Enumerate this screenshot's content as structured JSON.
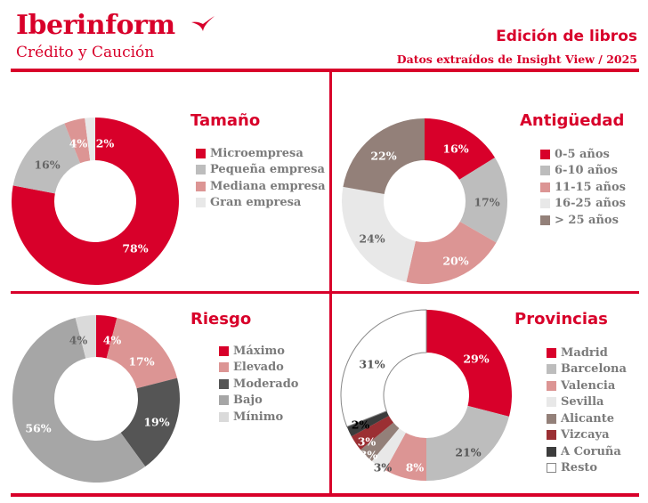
{
  "header": {
    "brand": "Iberinform",
    "brand_subtitle": "Crédito y Caución",
    "title": "Edición de libros",
    "subtitle": "Datos extraídos de Insight View / 2025",
    "brand_color": "#d8002a",
    "logo_icon": "plane-swoosh-icon"
  },
  "chart_data": [
    {
      "type": "pie",
      "donut": true,
      "title": "Tamaño",
      "categories": [
        "Microempresa",
        "Pequeña empresa",
        "Mediana empresa",
        "Gran empresa"
      ],
      "values": [
        78,
        16,
        4,
        2
      ],
      "labels": [
        "78%",
        "16%",
        "4%",
        "2%"
      ],
      "colors": [
        "#d8002a",
        "#bdbdbd",
        "#dc9594",
        "#e8e8e8"
      ],
      "label_colors": [
        "#ffffff",
        "#666666",
        "#ffffff",
        "#ffffff"
      ],
      "slice_order": [
        0,
        1,
        2,
        3
      ],
      "legend_position": "right"
    },
    {
      "type": "pie",
      "donut": true,
      "title": "Antigüedad",
      "categories": [
        "0-5 años",
        "6-10 años",
        "11-15 años",
        "16-25 años",
        "> 25 años"
      ],
      "values": [
        16,
        17,
        20,
        24,
        22
      ],
      "labels": [
        "16%",
        "17%",
        "20%",
        "24%",
        "22%"
      ],
      "colors": [
        "#d8002a",
        "#bdbdbd",
        "#dc9594",
        "#e8e8e8",
        "#938079"
      ],
      "label_colors": [
        "#ffffff",
        "#666666",
        "#ffffff",
        "#666666",
        "#ffffff"
      ],
      "legend_position": "right"
    },
    {
      "type": "pie",
      "donut": true,
      "title": "Riesgo",
      "categories": [
        "Máximo",
        "Elevado",
        "Moderado",
        "Bajo",
        "Mínimo"
      ],
      "values": [
        4,
        17,
        19,
        56,
        4
      ],
      "labels": [
        "4%",
        "17%",
        "19%",
        "56%",
        "4%"
      ],
      "colors": [
        "#d8002a",
        "#dc9594",
        "#555555",
        "#a6a6a6",
        "#dadada"
      ],
      "label_colors": [
        "#ffffff",
        "#ffffff",
        "#ffffff",
        "#ffffff",
        "#666666"
      ],
      "legend_position": "right"
    },
    {
      "type": "pie",
      "donut": true,
      "title": "Provincias",
      "categories": [
        "Madrid",
        "Barcelona",
        "Valencia",
        "Sevilla",
        "Alicante",
        "Vizcaya",
        "A Coruña",
        "Resto"
      ],
      "values": [
        29,
        21,
        8,
        3,
        3,
        3,
        2,
        31
      ],
      "labels": [
        "29%",
        "21%",
        "8%",
        "3%",
        "3%",
        "3%",
        "2%",
        "31%"
      ],
      "colors": [
        "#d8002a",
        "#bdbdbd",
        "#dc9594",
        "#e8e8e8",
        "#938079",
        "#9b2f33",
        "#3c3c3c",
        "#ffffff"
      ],
      "label_colors": [
        "#ffffff",
        "#555555",
        "#ffffff",
        "#555555",
        "#ffffff",
        "#ffffff",
        "#000000",
        "#555555"
      ],
      "outline_color": "#888888",
      "legend_position": "right"
    }
  ]
}
